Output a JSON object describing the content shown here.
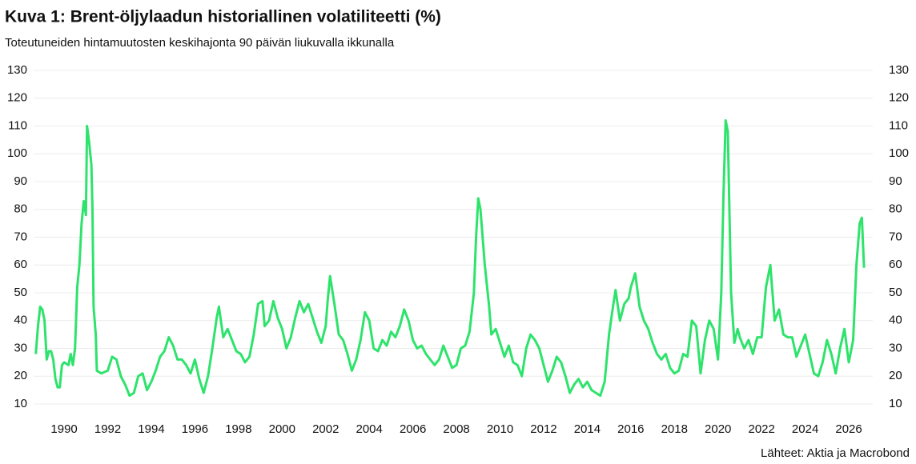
{
  "chart_data": {
    "type": "line",
    "title": "Kuva 1: Brent-öljylaadun historiallinen volatiliteetti (%)",
    "subtitle": "Toteutuneiden hintamuutosten keskihajonta 90 päivän liukuvalla ikkunalla",
    "source": "Lähteet: Aktia ja Macrobond",
    "xlim": [
      1988.6,
      2027.1
    ],
    "xticks": [
      1990,
      1992,
      1994,
      1996,
      1998,
      2000,
      2002,
      2004,
      2006,
      2008,
      2010,
      2012,
      2014,
      2016,
      2018,
      2020,
      2022,
      2024,
      2026
    ],
    "ylim": [
      10,
      130
    ],
    "yticks": [
      10,
      20,
      30,
      40,
      50,
      60,
      70,
      80,
      90,
      100,
      110,
      120,
      130
    ],
    "y2lim": [
      10,
      130
    ],
    "y2ticks": [
      10,
      20,
      30,
      40,
      50,
      60,
      70,
      80,
      90,
      100,
      110,
      120,
      130
    ],
    "grid": true,
    "x": [
      1988.7,
      1988.8,
      1988.9,
      1989.0,
      1989.1,
      1989.2,
      1989.3,
      1989.4,
      1989.5,
      1989.6,
      1989.7,
      1989.8,
      1989.9,
      1990.0,
      1990.2,
      1990.3,
      1990.4,
      1990.5,
      1990.6,
      1990.7,
      1990.8,
      1990.9,
      1991.0,
      1991.05,
      1991.15,
      1991.25,
      1991.3,
      1991.35,
      1991.45,
      1991.5,
      1991.7,
      1992.0,
      1992.2,
      1992.4,
      1992.6,
      1992.8,
      1993.0,
      1993.2,
      1993.4,
      1993.6,
      1993.8,
      1994.0,
      1994.2,
      1994.4,
      1994.6,
      1994.8,
      1995.0,
      1995.2,
      1995.4,
      1995.6,
      1995.8,
      1996.0,
      1996.2,
      1996.4,
      1996.6,
      1996.8,
      1997.0,
      1997.1,
      1997.3,
      1997.5,
      1997.7,
      1997.9,
      1998.1,
      1998.3,
      1998.5,
      1998.7,
      1998.9,
      1999.1,
      1999.2,
      1999.4,
      1999.6,
      1999.8,
      2000.0,
      2000.2,
      2000.4,
      2000.6,
      2000.8,
      2001.0,
      2001.2,
      2001.4,
      2001.6,
      2001.8,
      2002.0,
      2002.1,
      2002.2,
      2002.4,
      2002.6,
      2002.8,
      2003.0,
      2003.2,
      2003.4,
      2003.6,
      2003.8,
      2004.0,
      2004.2,
      2004.4,
      2004.6,
      2004.8,
      2005.0,
      2005.2,
      2005.4,
      2005.6,
      2005.8,
      2006.0,
      2006.2,
      2006.4,
      2006.6,
      2006.8,
      2007.0,
      2007.2,
      2007.4,
      2007.6,
      2007.8,
      2008.0,
      2008.2,
      2008.4,
      2008.6,
      2008.8,
      2008.9,
      2009.0,
      2009.1,
      2009.3,
      2009.5,
      2009.6,
      2009.8,
      2010.0,
      2010.2,
      2010.4,
      2010.6,
      2010.8,
      2011.0,
      2011.2,
      2011.4,
      2011.6,
      2011.8,
      2012.0,
      2012.2,
      2012.4,
      2012.6,
      2012.8,
      2013.0,
      2013.2,
      2013.4,
      2013.6,
      2013.8,
      2014.0,
      2014.2,
      2014.4,
      2014.6,
      2014.8,
      2015.0,
      2015.2,
      2015.3,
      2015.5,
      2015.7,
      2015.9,
      2016.0,
      2016.2,
      2016.4,
      2016.6,
      2016.8,
      2017.0,
      2017.2,
      2017.4,
      2017.6,
      2017.8,
      2018.0,
      2018.2,
      2018.4,
      2018.6,
      2018.8,
      2019.0,
      2019.2,
      2019.4,
      2019.6,
      2019.8,
      2020.0,
      2020.15,
      2020.25,
      2020.35,
      2020.45,
      2020.6,
      2020.75,
      2020.9,
      2021.0,
      2021.2,
      2021.4,
      2021.6,
      2021.8,
      2022.0,
      2022.2,
      2022.4,
      2022.6,
      2022.8,
      2023.0,
      2023.2,
      2023.4,
      2023.6,
      2023.8,
      2024.0,
      2024.2,
      2024.4,
      2024.6,
      2024.8,
      2025.0,
      2025.2,
      2025.4,
      2025.6,
      2025.8,
      2026.0,
      2026.2,
      2026.35,
      2026.5,
      2026.6,
      2026.7
    ],
    "series": [
      {
        "color": "#2ee36c",
        "values": [
          28,
          38,
          45,
          44,
          40,
          26,
          29,
          29,
          26,
          19,
          16,
          16,
          24,
          25,
          24,
          28,
          24,
          30,
          52,
          60,
          75,
          83,
          78,
          110,
          104,
          96,
          80,
          45,
          35,
          22,
          21,
          22,
          27,
          26,
          20,
          17,
          13,
          14,
          20,
          21,
          15,
          18,
          22,
          27,
          29,
          34,
          31,
          26,
          26,
          24,
          21,
          26,
          19,
          14,
          20,
          30,
          41,
          45,
          34,
          37,
          33,
          29,
          28,
          25,
          27,
          35,
          46,
          47,
          38,
          40,
          47,
          41,
          37,
          30,
          34,
          41,
          47,
          43,
          46,
          41,
          36,
          32,
          38,
          48,
          56,
          46,
          35,
          33,
          28,
          22,
          26,
          33,
          43,
          40,
          30,
          29,
          33,
          31,
          36,
          34,
          38,
          44,
          40,
          33,
          30,
          31,
          28,
          26,
          24,
          26,
          31,
          27,
          23,
          24,
          30,
          31,
          36,
          50,
          70,
          84,
          80,
          60,
          45,
          35,
          37,
          32,
          27,
          31,
          25,
          24,
          20,
          30,
          35,
          33,
          30,
          24,
          18,
          22,
          27,
          25,
          20,
          14,
          17,
          19,
          16,
          18,
          15,
          14,
          13,
          18,
          35,
          46,
          51,
          40,
          46,
          48,
          52,
          57,
          45,
          40,
          37,
          32,
          28,
          26,
          28,
          23,
          21,
          22,
          28,
          27,
          40,
          38,
          21,
          33,
          40,
          37,
          26,
          50,
          85,
          112,
          108,
          50,
          32,
          37,
          34,
          30,
          33,
          28,
          34,
          34,
          52,
          60,
          40,
          44,
          35,
          34,
          34,
          27,
          31,
          35,
          28,
          21,
          20,
          25,
          33,
          28,
          21,
          30,
          37,
          25,
          33,
          60,
          75,
          77,
          59
        ]
      }
    ]
  }
}
